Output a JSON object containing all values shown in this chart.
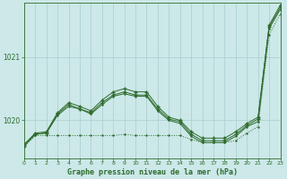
{
  "title": "Graphe pression niveau de la mer (hPa)",
  "background_color": "#cce8e8",
  "grid_color": "#aacece",
  "line_color": "#2d6b2d",
  "xlim": [
    0,
    23
  ],
  "ylim": [
    1019.4,
    1021.85
  ],
  "yticks": [
    1020,
    1021
  ],
  "xticks": [
    0,
    1,
    2,
    3,
    4,
    5,
    6,
    7,
    8,
    9,
    10,
    11,
    12,
    13,
    14,
    15,
    16,
    17,
    18,
    19,
    20,
    21,
    22,
    23
  ],
  "series_upper_x": [
    0,
    1,
    2,
    3,
    4,
    5,
    6,
    7,
    8,
    9,
    10,
    11,
    12,
    13,
    14,
    15,
    16,
    17,
    18,
    19,
    20,
    21,
    22,
    23
  ],
  "series_upper_y": [
    1019.62,
    1019.8,
    1019.82,
    1020.12,
    1020.28,
    1020.22,
    1020.15,
    1020.32,
    1020.45,
    1020.5,
    1020.45,
    1020.45,
    1020.22,
    1020.05,
    1020.0,
    1019.82,
    1019.72,
    1019.72,
    1019.72,
    1019.82,
    1019.95,
    1020.05,
    1021.5,
    1021.82
  ],
  "series_mid1_x": [
    0,
    1,
    2,
    3,
    4,
    5,
    6,
    7,
    8,
    9,
    10,
    11,
    12,
    13,
    14,
    15,
    16,
    17,
    18,
    19,
    20,
    21,
    22,
    23
  ],
  "series_mid1_y": [
    1019.6,
    1019.78,
    1019.8,
    1020.1,
    1020.25,
    1020.18,
    1020.12,
    1020.28,
    1020.4,
    1020.45,
    1020.4,
    1020.4,
    1020.18,
    1020.02,
    1019.98,
    1019.78,
    1019.68,
    1019.68,
    1019.68,
    1019.78,
    1019.92,
    1020.02,
    1021.48,
    1021.78
  ],
  "series_mid2_x": [
    0,
    1,
    2,
    3,
    4,
    5,
    6,
    7,
    8,
    9,
    10,
    11,
    12,
    13,
    14,
    15,
    16,
    17,
    18,
    19,
    20,
    21,
    22,
    23
  ],
  "series_mid2_y": [
    1019.6,
    1019.78,
    1019.8,
    1020.08,
    1020.22,
    1020.18,
    1020.1,
    1020.25,
    1020.38,
    1020.42,
    1020.38,
    1020.38,
    1020.15,
    1020.0,
    1019.95,
    1019.75,
    1019.65,
    1019.65,
    1019.65,
    1019.75,
    1019.9,
    1019.98,
    1021.45,
    1021.75
  ],
  "series_flat_x": [
    0,
    1,
    2,
    3,
    4,
    5,
    6,
    7,
    8,
    9,
    10,
    11,
    12,
    13,
    14,
    15,
    16,
    17,
    18,
    19,
    20,
    21,
    22,
    23
  ],
  "series_flat_y": [
    1019.58,
    1019.76,
    1019.76,
    1019.76,
    1019.76,
    1019.76,
    1019.76,
    1019.76,
    1019.76,
    1019.78,
    1019.76,
    1019.76,
    1019.76,
    1019.76,
    1019.76,
    1019.7,
    1019.65,
    1019.65,
    1019.65,
    1019.68,
    1019.8,
    1019.9,
    1021.35,
    1021.68
  ]
}
